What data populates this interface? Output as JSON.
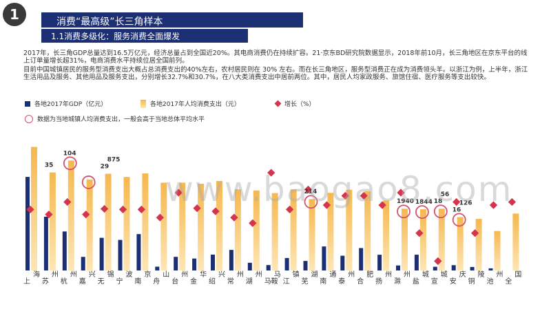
{
  "header": {
    "section_number": "1",
    "title": "消费“最高级”长三角样本",
    "subtitle": "1.1消费多级化：服务消费全面爆发"
  },
  "body_text": {
    "para1": "2017年，长三角GDP总量达到16.5万亿元，经济总量占到全国近20%。其电商消费仍在持续扩容。21·京东BD研究院数据显示，2018年前10月，长三角地区在京东平台的线上订单量增长超31%，电商消费水平持续位居全国前列。",
    "para2": "目前中国城镇居民的服务型消费支出大概占总消费支出的40%左右，农村居民则在 30% 左右。而在长三角地区，服务型消费正在成为消费领头羊。以浙江为例，上半年，浙江生活用品及服务、其他用品及服务支出，分别增长32.7%和30.7%，在八大类消费支出中居前两位。其中，居民人均家政服务、旅馆住宿、医疗服务等支出较快。"
  },
  "legend": {
    "gdp": "各地2017年GDP（亿元）",
    "spend": "各地2017年人均消费支出（元）",
    "growth": "增长（%）",
    "circle_note": "数据为当地城镇人均消费支出，一般会高于当地总体平均水平"
  },
  "watermark": "www.baogao8.com",
  "colors": {
    "navy": "#1d2f73",
    "gold_top": "#f6b74e",
    "gold_bottom": "#fde6b5",
    "diamond": "#d6334d",
    "circle": "#d5506b"
  },
  "chart_data": {
    "type": "bar",
    "categories": [
      "上海",
      "苏州",
      "杭州",
      "嘉兴",
      "无锡",
      "宁波",
      "南京",
      "舟山",
      "台州",
      "金华",
      "绍兴",
      "常州",
      "湖州",
      "马鞍山",
      "镇江",
      "芜湖",
      "南通",
      "泰州",
      "合肥",
      "扬州",
      "滁州",
      "盐城",
      "宣城",
      "安庆",
      "铜陵",
      "池州",
      "全国"
    ],
    "tick_labels": [
      "上",
      "海",
      "苏",
      "州",
      "杭",
      "州",
      "嘉",
      "兴",
      "无",
      "锡",
      "宁",
      "波",
      "南",
      "京",
      "舟",
      "山",
      "台",
      "州",
      "金",
      "华",
      "绍",
      "兴",
      "常",
      "州",
      "湖",
      "州",
      "马鞍",
      "马",
      "江",
      "镇",
      "芜",
      "湖",
      "南",
      "通",
      "泰",
      "州",
      "合",
      "肥",
      "扬",
      "州",
      "滁",
      "州",
      "盐",
      "城",
      "宣",
      "城",
      "安",
      "庆",
      "铜",
      "陵",
      "池",
      "州",
      "全",
      "国"
    ],
    "series": [
      {
        "name": "各地2017年GDP（亿元）",
        "values": [
          30133,
          17320,
          12556,
          4380,
          10512,
          9842,
          11715,
          1220,
          4388,
          3849,
          5108,
          6618,
          2476,
          1738,
          4010,
          3065,
          7735,
          4745,
          7213,
          5065,
          1608,
          5083,
          1190,
          1708,
          1122,
          684,
          null
        ]
      },
      {
        "name": "各地2017年人均消费支出（元）",
        "values": [
          39792,
          31578,
          35408,
          29280,
          31148,
          30101,
          31256,
          28262,
          28264,
          27936,
          28826,
          26133,
          25765,
          24920,
          26132,
          23000,
          25000,
          26000,
          25500,
          22500,
          19900,
          19700,
          19900,
          17200,
          16600,
          12700,
          18322
        ]
      },
      {
        "name": "增长（%）",
        "values": [
          6.8,
          6.0,
          8.0,
          6.0,
          6.9,
          6.8,
          6.8,
          5.5,
          9.5,
          7.0,
          6.5,
          5.5,
          4.6,
          12.7,
          6.8,
          10.0,
          7.5,
          9.0,
          9.0,
          7.5,
          9.5,
          3.0,
          -1.5,
          8.0,
          3.0,
          7.5,
          8.0
        ]
      }
    ],
    "data_labels": [
      {
        "category": "苏州",
        "text": "35"
      },
      {
        "category": "杭州",
        "text": "104"
      },
      {
        "category": "无锡",
        "text": "29"
      },
      {
        "category": "无锡",
        "text": "875"
      },
      {
        "category": "芜湖",
        "text": "214"
      },
      {
        "category": "滁州",
        "text": "1940"
      },
      {
        "category": "盐城",
        "text": "1844"
      },
      {
        "category": "宣城",
        "text": "18"
      },
      {
        "category": "宣城",
        "text": "56"
      },
      {
        "category": "安庆",
        "text": "16"
      },
      {
        "category": "安庆",
        "text": "126"
      }
    ],
    "circled": [
      "杭州",
      "嘉兴",
      "芜湖",
      "滁州",
      "盐城",
      "宣城",
      "安庆"
    ],
    "ylim_gdp": [
      0,
      45000
    ],
    "ylim_spend": [
      0,
      45000
    ],
    "ylim_growth": [
      -3,
      20
    ]
  }
}
